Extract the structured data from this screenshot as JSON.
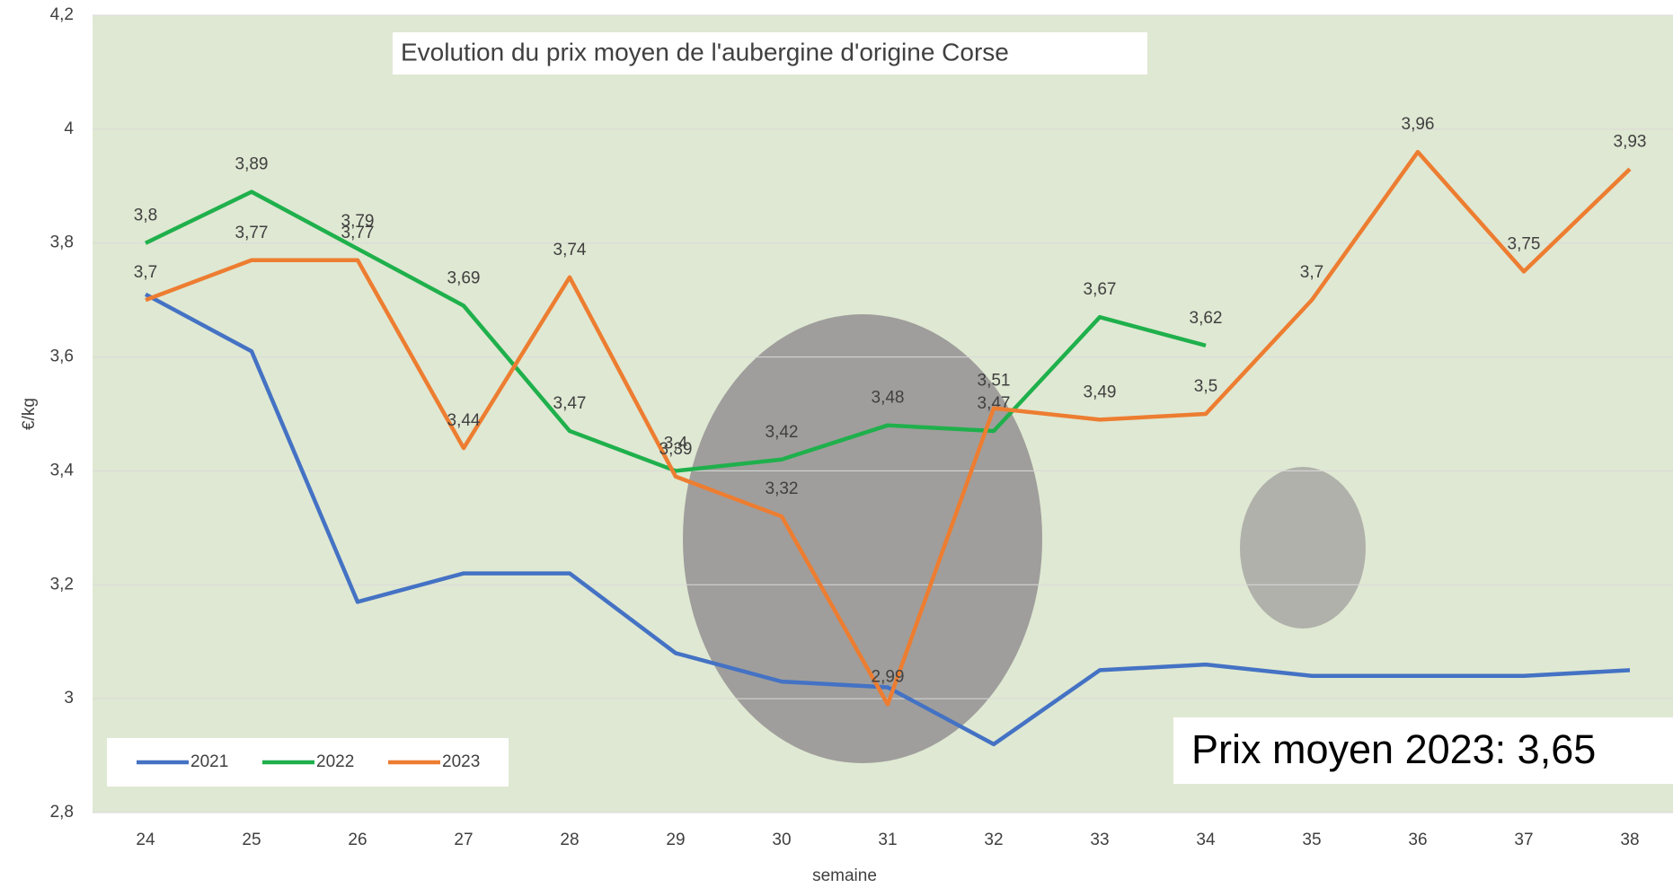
{
  "chart_data": {
    "type": "line",
    "title": "Evolution du prix moyen de l'aubergine d'origine Corse",
    "x_label": "semaine",
    "y_label": "€/kg",
    "annotation": "Prix moyen 2023: 3,65",
    "categories": [
      "24",
      "25",
      "26",
      "27",
      "28",
      "29",
      "30",
      "31",
      "32",
      "33",
      "34",
      "35",
      "36",
      "37",
      "38"
    ],
    "ylim": [
      2.8,
      4.2
    ],
    "yticks": [
      {
        "value": 2.8,
        "label": "2,8"
      },
      3,
      {
        "value": 3.2,
        "label": "3,2"
      },
      {
        "value": 3.4,
        "label": "3,4"
      },
      {
        "value": 3.6,
        "label": "3,6"
      },
      {
        "value": 3.8,
        "label": "3,8"
      },
      4,
      {
        "value": 4.2,
        "label": "4,2"
      }
    ],
    "grid": true,
    "legend": "bottom-left",
    "series": [
      {
        "name": "2021",
        "color": "#4472c4",
        "values": [
          3.71,
          3.61,
          3.17,
          3.22,
          3.22,
          3.08,
          3.03,
          3.02,
          2.92,
          3.05,
          3.06,
          3.04,
          3.04,
          3.04,
          3.05
        ]
      },
      {
        "name": "2022",
        "color": "#1fb04c",
        "values": [
          3.8,
          3.89,
          3.79,
          3.69,
          3.47,
          3.4,
          3.42,
          3.48,
          3.47,
          3.67,
          3.62,
          null,
          null,
          null,
          null
        ],
        "value_labels": [
          "3,8",
          "3,89",
          "3,79",
          "3,69",
          "3,47",
          "3,4",
          "3,42",
          "3,48",
          "3,47",
          "3,67",
          "3,62",
          null,
          null,
          null,
          null
        ]
      },
      {
        "name": "2023",
        "color": "#ed7d31",
        "values": [
          3.7,
          3.77,
          3.77,
          3.44,
          3.74,
          3.39,
          3.32,
          2.99,
          3.51,
          3.49,
          3.5,
          3.7,
          3.96,
          3.75,
          3.93
        ],
        "value_labels": [
          "3,7",
          "3,77",
          "3,77",
          "3,44",
          "3,74",
          "3,39",
          "3,32",
          "2,99",
          "3,51",
          "3,49",
          "3,5",
          "3,7",
          "3,96",
          "3,75",
          "3,93"
        ]
      }
    ]
  }
}
